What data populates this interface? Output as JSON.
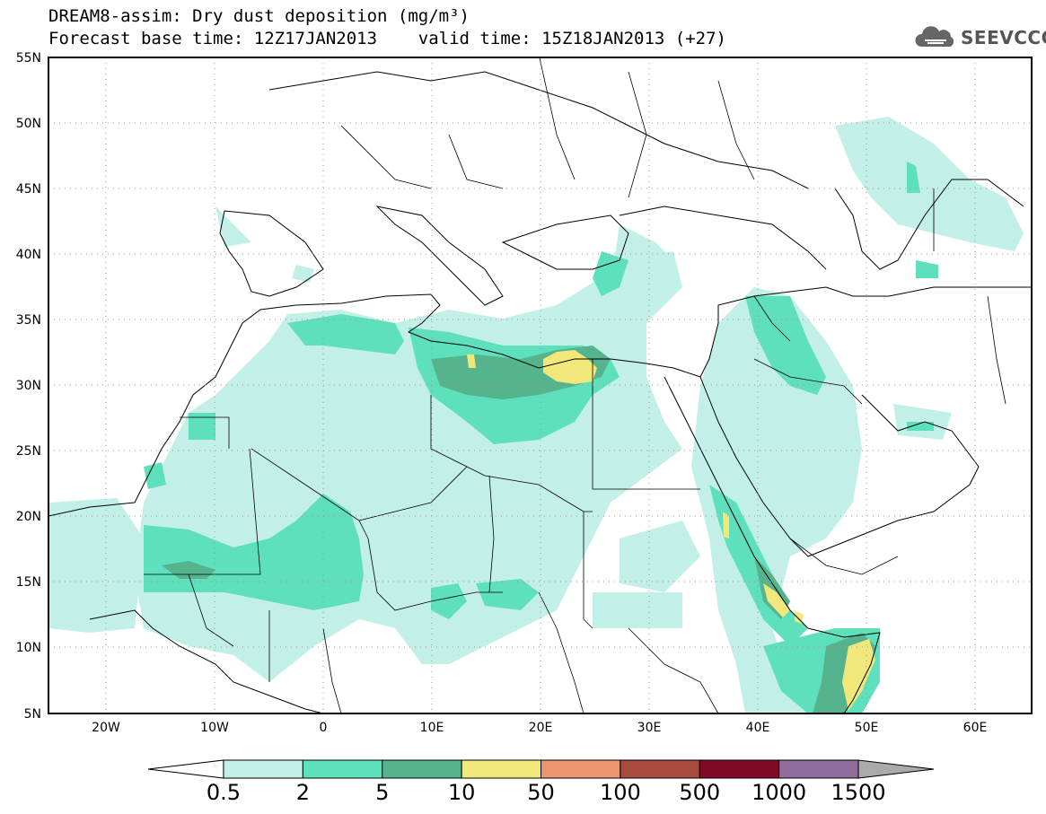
{
  "header": {
    "title_line1": "DREAM8-assim: Dry dust deposition (mg/m³)",
    "title_line2": "Forecast base time: 12Z17JAN2013    valid time: 15Z18JAN2013 (+27)"
  },
  "logo": {
    "text": "SEEVCCC",
    "icon": "cloud-icon"
  },
  "map": {
    "lat_labels": [
      "55N",
      "50N",
      "45N",
      "40N",
      "35N",
      "30N",
      "25N",
      "20N",
      "15N",
      "10N",
      "5N"
    ],
    "lon_labels": [
      "20W",
      "10W",
      "0",
      "10E",
      "20E",
      "30E",
      "40E",
      "50E",
      "60E"
    ],
    "grid": "dotted"
  },
  "colorbar": {
    "labels": [
      "0.5",
      "2",
      "5",
      "10",
      "50",
      "100",
      "500",
      "1000",
      "1500"
    ],
    "colors": [
      "#ffffff",
      "#c2f0e8",
      "#5ee0bc",
      "#55b38e",
      "#f2e87a",
      "#ec9470",
      "#a94a3e",
      "#7f0a26",
      "#8f6b9e",
      "#aaaaaa"
    ]
  }
}
